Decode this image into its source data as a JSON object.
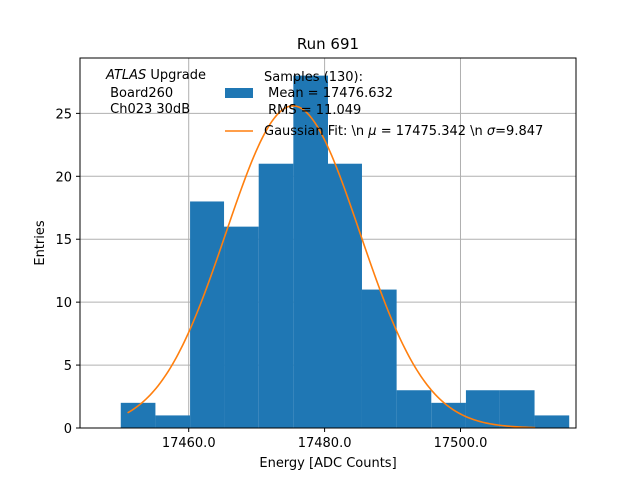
{
  "chart_data": {
    "type": "bar",
    "title": "Run 691",
    "xlabel": "Energy [ADC Counts]",
    "ylabel": "Entries",
    "xlim": [
      17444.0,
      17517.0
    ],
    "ylim": [
      0,
      29.4
    ],
    "grid": true,
    "x_ticks": [
      {
        "value": 17460.0,
        "label": "17460.0"
      },
      {
        "value": 17480.0,
        "label": "17480.0"
      },
      {
        "value": 17500.0,
        "label": "17500.0"
      }
    ],
    "y_ticks": [
      {
        "value": 0,
        "label": "0"
      },
      {
        "value": 5,
        "label": "5"
      },
      {
        "value": 10,
        "label": "10"
      },
      {
        "value": 15,
        "label": "15"
      },
      {
        "value": 20,
        "label": "20"
      },
      {
        "value": 25,
        "label": "25"
      }
    ],
    "histogram": {
      "color": "#1f77b4",
      "bin_edges": [
        17450.0,
        17455.1,
        17460.2,
        17465.2,
        17470.3,
        17475.4,
        17480.5,
        17485.5,
        17490.6,
        17495.7,
        17500.8,
        17505.8,
        17510.9,
        17516.0
      ],
      "counts": [
        2,
        1,
        18,
        16,
        21,
        28,
        21,
        11,
        3,
        2,
        3,
        3,
        1
      ]
    },
    "fit": {
      "color": "#ff7f0e",
      "mu": 17475.342,
      "sigma": 9.847,
      "peak": 25.6,
      "x_range": [
        17451.0,
        17511.0
      ]
    },
    "annotation": {
      "italic": "ATLAS",
      "first_line_rest": " Upgrade",
      "lines": [
        " Board260",
        " Ch023 30dB"
      ]
    },
    "legend": {
      "placement": "upper-center",
      "items": [
        {
          "kind": "patch",
          "color": "#1f77b4",
          "lines": [
            "Samples (130):",
            " Mean = 17476.632",
            " RMS = 11.049"
          ]
        },
        {
          "kind": "line",
          "color": "#ff7f0e",
          "text_a": "Gaussian Fit: \\n ",
          "text_mu": "μ",
          "text_b": " = 17475.342 \\n ",
          "text_sigma": "σ",
          "text_c": "=9.847"
        }
      ]
    }
  }
}
